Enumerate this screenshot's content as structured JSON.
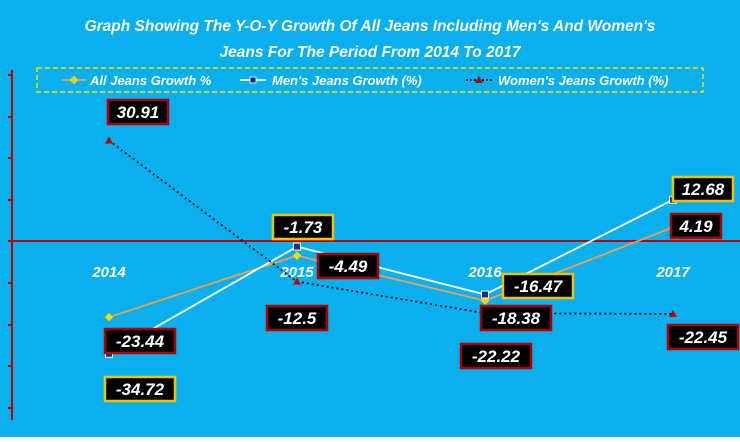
{
  "chart_data": {
    "type": "line",
    "title_line1": "Graph Showing The Y-O-Y Growth Of All Jeans Including Men's And Women's",
    "title_line2": "Jeans For The Period From 2014 To 2017",
    "categories": [
      "2014",
      "2015",
      "2016",
      "2017"
    ],
    "ylim": [
      -45,
      40
    ],
    "grid": false,
    "legend_position": "top",
    "colors": {
      "background": "#0AB0EE",
      "axis": "#C00000",
      "all": "#F0A050",
      "all_marker": "#FFD700",
      "mens": "#FFFFFF",
      "mens_marker": "#1F2F8F",
      "womens": "#0A0A0A",
      "womens_marker": "#C00000",
      "label_bg": "#000000",
      "label_text": "#FFFFFF",
      "label_border_yellow": "#F2C200",
      "label_border_red": "#B00000",
      "legend_border": "#F2E600"
    },
    "series": [
      {
        "name": "All Jeans Growth %",
        "key": "all",
        "values": [
          -23.44,
          -4.49,
          -18.38,
          4.19
        ],
        "labels": [
          "-23.44",
          "-4.49",
          "-18.38",
          "4.19"
        ]
      },
      {
        "name": "Men's Jeans  Growth (%)",
        "key": "mens",
        "values": [
          -34.72,
          -1.73,
          -16.47,
          12.68
        ],
        "labels": [
          "-34.72",
          "-1.73",
          "-16.47",
          "12.68"
        ]
      },
      {
        "name": "Women's Jeans Growth (%)",
        "key": "womens",
        "values": [
          30.91,
          -12.5,
          -22.22,
          -22.45
        ],
        "labels": [
          "30.91",
          "-12.5",
          "-22.22",
          "-22.45"
        ]
      }
    ]
  }
}
